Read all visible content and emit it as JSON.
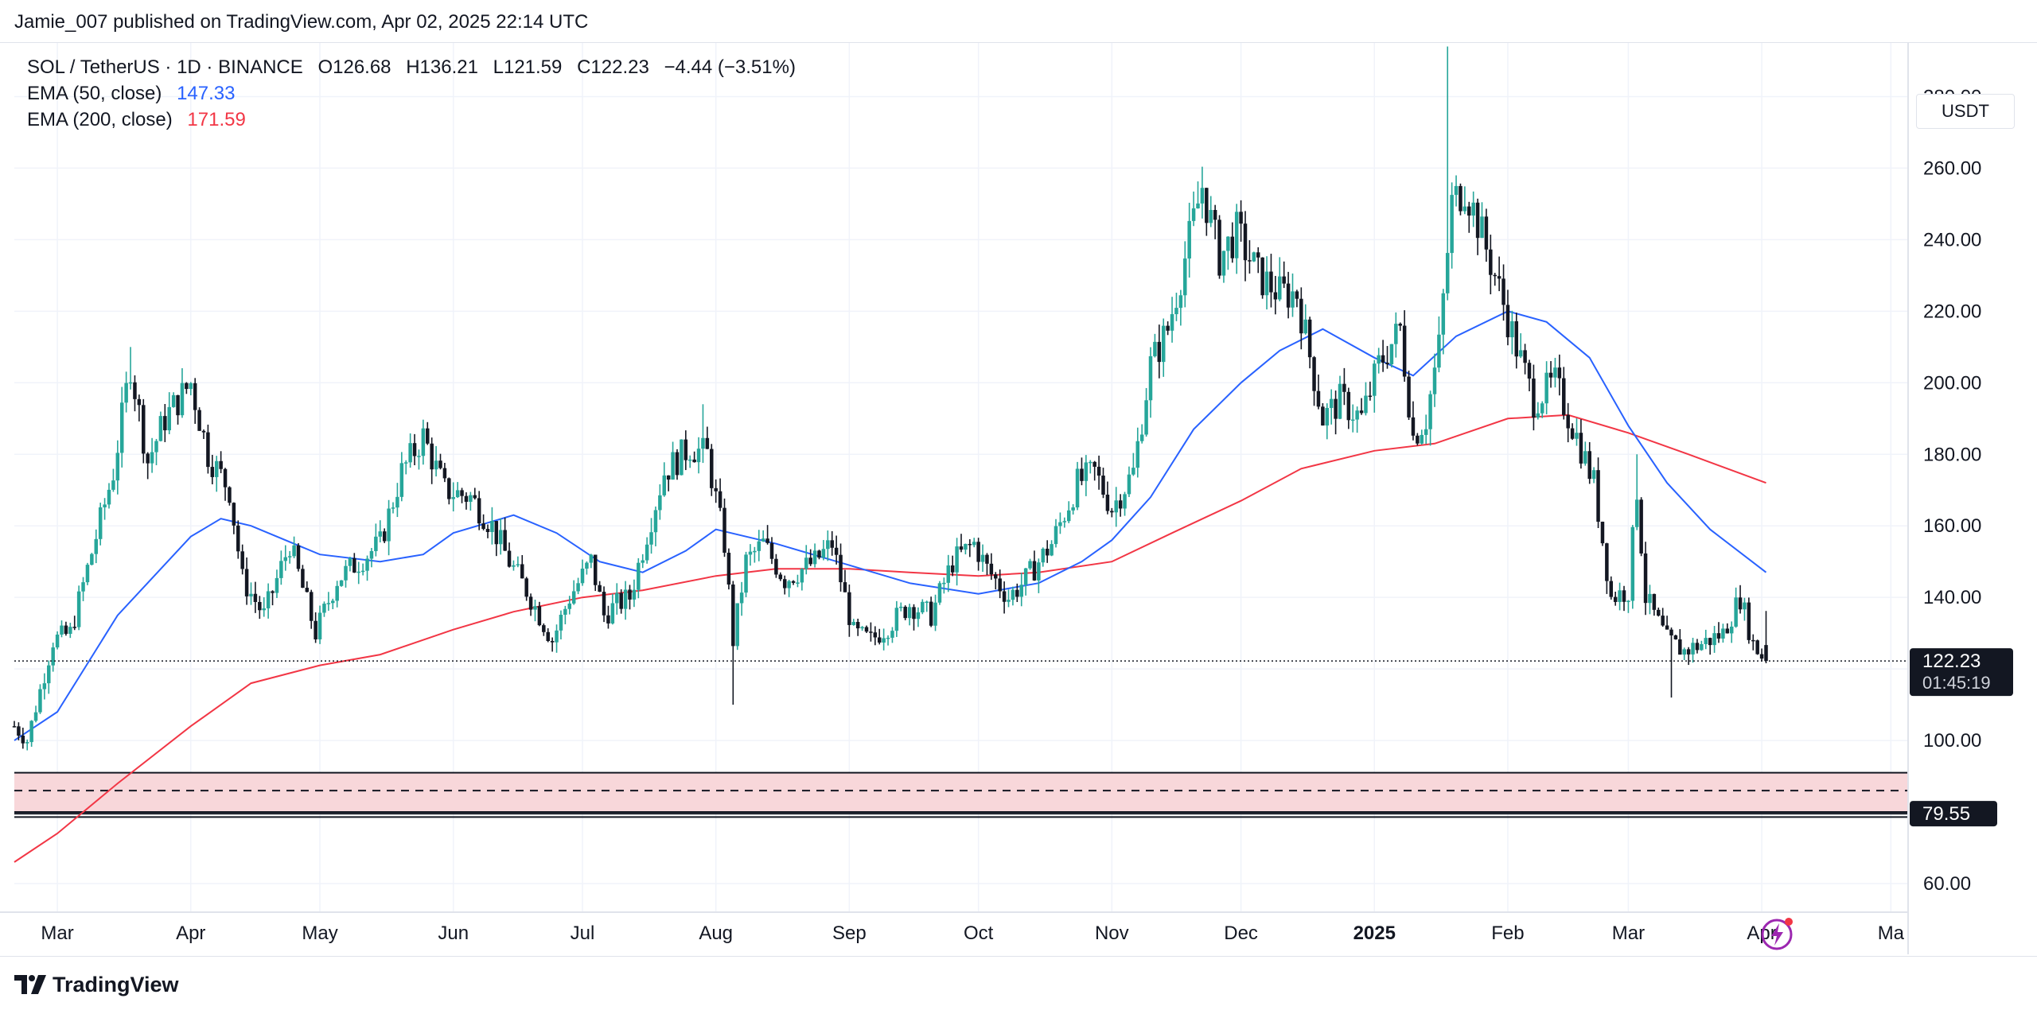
{
  "header": {
    "publish_line": "Jamie_007 published on TradingView.com, Apr 02, 2025 22:14 UTC"
  },
  "legend": {
    "symbol": "SOL / TetherUS · 1D · BINANCE",
    "open": "O126.68",
    "high": "H136.21",
    "low": "L121.59",
    "close": "C122.23",
    "change": "−4.44 (−3.51%)",
    "ema50_label": "EMA (50, close)",
    "ema50_value": "147.33",
    "ema200_label": "EMA (200, close)",
    "ema200_value": "171.59"
  },
  "price_scale": {
    "currency": "USDT",
    "last_price": "122.23",
    "countdown": "01:45:19",
    "level_label": "79.55"
  },
  "footer": {
    "brand": "TradingView"
  },
  "colors": {
    "up": "#26a69a",
    "down": "#131722",
    "ema50": "#2962ff",
    "ema200": "#f23645",
    "zone_fill": "#f8d7da",
    "grid": "#f0f3fa"
  },
  "icons": {
    "logo": "tradingview-logo-icon",
    "alert": "lightning-bolt-icon"
  },
  "chart_data": {
    "type": "candlestick",
    "title": "SOL / TetherUS · 1D · BINANCE",
    "ylim": [
      52,
      295
    ],
    "y_ticks": [
      60,
      80,
      100,
      120,
      140,
      160,
      180,
      200,
      220,
      240,
      260,
      280
    ],
    "y_tick_labels": [
      "60.00",
      "",
      "100.00",
      "",
      "140.00",
      "160.00",
      "180.00",
      "200.00",
      "220.00",
      "240.00",
      "260.00",
      "280.00"
    ],
    "x_range": [
      "2024-02-20",
      "2025-05-05"
    ],
    "x_ticks": [
      {
        "date": "2024-03-01",
        "label": "Mar",
        "bold": false
      },
      {
        "date": "2024-04-01",
        "label": "Apr",
        "bold": false
      },
      {
        "date": "2024-05-01",
        "label": "May",
        "bold": false
      },
      {
        "date": "2024-06-01",
        "label": "Jun",
        "bold": false
      },
      {
        "date": "2024-07-01",
        "label": "Jul",
        "bold": false
      },
      {
        "date": "2024-08-01",
        "label": "Aug",
        "bold": false
      },
      {
        "date": "2024-09-01",
        "label": "Sep",
        "bold": false
      },
      {
        "date": "2024-10-01",
        "label": "Oct",
        "bold": false
      },
      {
        "date": "2024-11-01",
        "label": "Nov",
        "bold": false
      },
      {
        "date": "2024-12-01",
        "label": "Dec",
        "bold": false
      },
      {
        "date": "2025-01-01",
        "label": "2025",
        "bold": true
      },
      {
        "date": "2025-02-01",
        "label": "Feb",
        "bold": false
      },
      {
        "date": "2025-03-01",
        "label": "Mar",
        "bold": false
      },
      {
        "date": "2025-04-01",
        "label": "Apr",
        "bold": false
      },
      {
        "date": "2025-05-01",
        "label": "Ma",
        "bold": false
      }
    ],
    "price_path": [
      [
        "2024-02-20",
        104
      ],
      [
        "2024-02-23",
        100
      ],
      [
        "2024-02-29",
        128
      ],
      [
        "2024-03-04",
        130
      ],
      [
        "2024-03-08",
        148
      ],
      [
        "2024-03-14",
        175
      ],
      [
        "2024-03-18",
        205
      ],
      [
        "2024-03-22",
        178
      ],
      [
        "2024-03-26",
        190
      ],
      [
        "2024-04-01",
        200
      ],
      [
        "2024-04-05",
        180
      ],
      [
        "2024-04-10",
        170
      ],
      [
        "2024-04-13",
        145
      ],
      [
        "2024-04-18",
        135
      ],
      [
        "2024-04-24",
        155
      ],
      [
        "2024-04-30",
        130
      ],
      [
        "2024-05-05",
        145
      ],
      [
        "2024-05-10",
        150
      ],
      [
        "2024-05-15",
        155
      ],
      [
        "2024-05-20",
        175
      ],
      [
        "2024-05-25",
        185
      ],
      [
        "2024-05-30",
        170
      ],
      [
        "2024-06-05",
        168
      ],
      [
        "2024-06-10",
        160
      ],
      [
        "2024-06-14",
        150
      ],
      [
        "2024-06-18",
        142
      ],
      [
        "2024-06-24",
        128
      ],
      [
        "2024-06-28",
        140
      ],
      [
        "2024-07-03",
        150
      ],
      [
        "2024-07-06",
        135
      ],
      [
        "2024-07-09",
        138
      ],
      [
        "2024-07-12",
        140
      ],
      [
        "2024-07-16",
        158
      ],
      [
        "2024-07-20",
        175
      ],
      [
        "2024-07-26",
        182
      ],
      [
        "2024-07-30",
        180
      ],
      [
        "2024-08-03",
        155
      ],
      [
        "2024-08-05",
        128
      ],
      [
        "2024-08-08",
        150
      ],
      [
        "2024-08-12",
        155
      ],
      [
        "2024-08-17",
        145
      ],
      [
        "2024-08-24",
        150
      ],
      [
        "2024-08-28",
        155
      ],
      [
        "2024-09-02",
        130
      ],
      [
        "2024-09-06",
        128
      ],
      [
        "2024-09-10",
        132
      ],
      [
        "2024-09-15",
        138
      ],
      [
        "2024-09-20",
        135
      ],
      [
        "2024-09-25",
        150
      ],
      [
        "2024-09-30",
        155
      ],
      [
        "2024-10-03",
        148
      ],
      [
        "2024-10-08",
        140
      ],
      [
        "2024-10-12",
        145
      ],
      [
        "2024-10-18",
        155
      ],
      [
        "2024-10-24",
        172
      ],
      [
        "2024-10-28",
        175
      ],
      [
        "2024-11-01",
        165
      ],
      [
        "2024-11-06",
        175
      ],
      [
        "2024-11-10",
        205
      ],
      [
        "2024-11-14",
        215
      ],
      [
        "2024-11-18",
        235
      ],
      [
        "2024-11-22",
        255
      ],
      [
        "2024-11-26",
        235
      ],
      [
        "2024-11-30",
        242
      ],
      [
        "2024-12-05",
        230
      ],
      [
        "2024-12-10",
        225
      ],
      [
        "2024-12-14",
        225
      ],
      [
        "2024-12-20",
        190
      ],
      [
        "2024-12-24",
        195
      ],
      [
        "2024-12-29",
        190
      ],
      [
        "2025-01-02",
        205
      ],
      [
        "2025-01-07",
        215
      ],
      [
        "2025-01-10",
        185
      ],
      [
        "2025-01-13",
        190
      ],
      [
        "2025-01-16",
        210
      ],
      [
        "2025-01-19",
        250
      ],
      [
        "2025-01-22",
        255
      ],
      [
        "2025-01-25",
        245
      ],
      [
        "2025-01-29",
        230
      ],
      [
        "2025-02-03",
        210
      ],
      [
        "2025-02-07",
        195
      ],
      [
        "2025-02-12",
        200
      ],
      [
        "2025-02-17",
        185
      ],
      [
        "2025-02-21",
        172
      ],
      [
        "2025-02-25",
        140
      ],
      [
        "2025-03-01",
        142
      ],
      [
        "2025-03-03",
        170
      ],
      [
        "2025-03-05",
        140
      ],
      [
        "2025-03-10",
        128
      ],
      [
        "2025-03-14",
        125
      ],
      [
        "2025-03-18",
        127
      ],
      [
        "2025-03-23",
        130
      ],
      [
        "2025-03-27",
        140
      ],
      [
        "2025-03-30",
        127
      ],
      [
        "2025-04-02",
        122
      ]
    ],
    "spikes": [
      {
        "date": "2024-03-18",
        "high": 210
      },
      {
        "date": "2024-07-29",
        "high": 194
      },
      {
        "date": "2024-08-05",
        "low": 110
      },
      {
        "date": "2025-01-18",
        "high": 294
      },
      {
        "date": "2025-03-03",
        "high": 180
      },
      {
        "date": "2025-03-11",
        "low": 112
      }
    ],
    "last_candle": {
      "date": "2025-04-02",
      "open": 126.68,
      "high": 136.21,
      "low": 121.59,
      "close": 122.23
    },
    "ema50": [
      [
        "2024-02-20",
        100
      ],
      [
        "2024-03-01",
        108
      ],
      [
        "2024-03-15",
        135
      ],
      [
        "2024-04-01",
        157
      ],
      [
        "2024-04-08",
        162
      ],
      [
        "2024-04-15",
        160
      ],
      [
        "2024-05-01",
        152
      ],
      [
        "2024-05-15",
        150
      ],
      [
        "2024-05-25",
        152
      ],
      [
        "2024-06-01",
        158
      ],
      [
        "2024-06-15",
        163
      ],
      [
        "2024-06-25",
        158
      ],
      [
        "2024-07-05",
        150
      ],
      [
        "2024-07-15",
        147
      ],
      [
        "2024-07-25",
        153
      ],
      [
        "2024-08-01",
        159
      ],
      [
        "2024-08-15",
        155
      ],
      [
        "2024-09-01",
        149
      ],
      [
        "2024-09-15",
        144
      ],
      [
        "2024-10-01",
        141
      ],
      [
        "2024-10-15",
        144
      ],
      [
        "2024-10-25",
        150
      ],
      [
        "2024-11-01",
        156
      ],
      [
        "2024-11-10",
        168
      ],
      [
        "2024-11-20",
        187
      ],
      [
        "2024-12-01",
        200
      ],
      [
        "2024-12-10",
        209
      ],
      [
        "2024-12-20",
        215
      ],
      [
        "2025-01-01",
        207
      ],
      [
        "2025-01-10",
        202
      ],
      [
        "2025-01-20",
        213
      ],
      [
        "2025-02-01",
        220
      ],
      [
        "2025-02-10",
        217
      ],
      [
        "2025-02-20",
        207
      ],
      [
        "2025-03-01",
        188
      ],
      [
        "2025-03-10",
        172
      ],
      [
        "2025-03-20",
        159
      ],
      [
        "2025-04-02",
        147
      ]
    ],
    "ema200": [
      [
        "2024-02-20",
        66
      ],
      [
        "2024-03-01",
        74
      ],
      [
        "2024-03-15",
        88
      ],
      [
        "2024-04-01",
        104
      ],
      [
        "2024-04-15",
        116
      ],
      [
        "2024-05-01",
        121
      ],
      [
        "2024-05-15",
        124
      ],
      [
        "2024-06-01",
        131
      ],
      [
        "2024-06-15",
        136
      ],
      [
        "2024-07-01",
        140
      ],
      [
        "2024-07-15",
        142
      ],
      [
        "2024-08-01",
        146
      ],
      [
        "2024-08-15",
        148
      ],
      [
        "2024-09-01",
        148
      ],
      [
        "2024-09-15",
        147
      ],
      [
        "2024-10-01",
        146
      ],
      [
        "2024-10-15",
        147
      ],
      [
        "2024-11-01",
        150
      ],
      [
        "2024-11-15",
        158
      ],
      [
        "2024-12-01",
        167
      ],
      [
        "2024-12-15",
        176
      ],
      [
        "2025-01-01",
        181
      ],
      [
        "2025-01-15",
        183
      ],
      [
        "2025-02-01",
        190
      ],
      [
        "2025-02-15",
        191
      ],
      [
        "2025-03-01",
        186
      ],
      [
        "2025-03-15",
        180
      ],
      [
        "2025-04-02",
        172
      ]
    ],
    "zone": {
      "top": 91,
      "bottom": 80,
      "dashed": 86
    },
    "horizontal_levels": [
      79.55,
      78.6
    ],
    "last_price_line": 122.23
  }
}
